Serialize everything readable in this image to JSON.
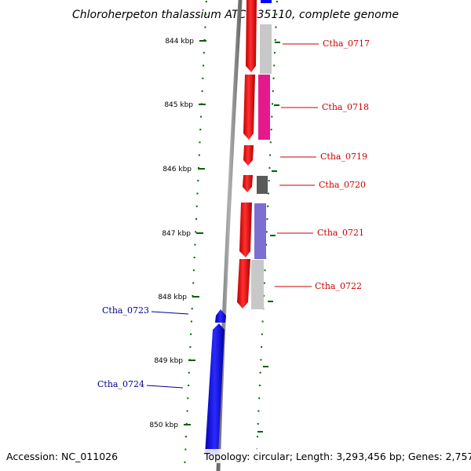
{
  "title": "Chloroherpeton thalassium ATCC 35110, complete genome",
  "footer": {
    "accession": "Accession: NC_011026",
    "summary": "Topology: circular; Length: 3,293,456 bp; Genes: 2,757"
  },
  "kbp_ticks": [
    {
      "label": "844 kbp"
    },
    {
      "label": "845 kbp"
    },
    {
      "label": "846 kbp"
    },
    {
      "label": "847 kbp"
    },
    {
      "label": "848 kbp"
    },
    {
      "label": "849 kbp"
    },
    {
      "label": "850 kbp"
    }
  ],
  "genes_forward": [
    {
      "label": "Ctha_0717",
      "cog_color": "#c8c8c8"
    },
    {
      "label": "Ctha_0718",
      "cog_color": "#e6198c"
    },
    {
      "label": "Ctha_0719",
      "cog_color": ""
    },
    {
      "label": "Ctha_0720",
      "cog_color": "#5a5a5a"
    },
    {
      "label": "Ctha_0721",
      "cog_color": "#7d6ed2"
    },
    {
      "label": "Ctha_0722",
      "cog_color": "#c8c8c8"
    }
  ],
  "genes_reverse": [
    {
      "label": "Ctha_0723"
    },
    {
      "label": "Ctha_0724"
    }
  ],
  "colors": {
    "forward_gene": "#ff0000",
    "reverse_gene": "#0000ff",
    "backbone": "#8c8c8c",
    "tick": "#006400",
    "forward_label_line": "#cc0000",
    "reverse_label_line": "#00008b"
  }
}
